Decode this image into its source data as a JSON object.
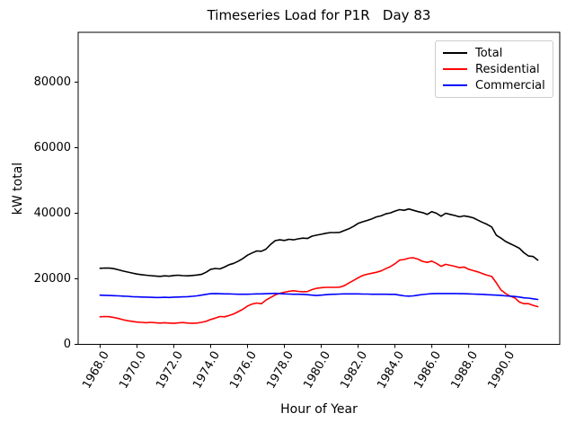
{
  "chart_data": {
    "type": "line",
    "title": "Timeseries Load for P1R   Day 83",
    "xlabel": "Hour of Year",
    "ylabel": "kW total",
    "grid": false,
    "legend_position": "upper right",
    "xlim": [
      1966.81,
      1992.94
    ],
    "ylim": [
      0,
      95200
    ],
    "x_ticks": [
      1968,
      1970,
      1972,
      1974,
      1976,
      1978,
      1980,
      1982,
      1984,
      1986,
      1988,
      1990
    ],
    "x_tick_labels": [
      "1968.0",
      "1970.0",
      "1972.0",
      "1974.0",
      "1976.0",
      "1978.0",
      "1980.0",
      "1982.0",
      "1984.0",
      "1986.0",
      "1988.0",
      "1990.0"
    ],
    "y_ticks": [
      0,
      20000,
      40000,
      60000,
      80000
    ],
    "y_tick_labels": [
      "0",
      "20000",
      "40000",
      "60000",
      "80000"
    ],
    "x_start": 1968.0,
    "x_step": 0.25,
    "series": [
      {
        "name": "Total",
        "color": "#000000",
        "values": [
          23200,
          23300,
          23250,
          23100,
          22750,
          22350,
          22050,
          21750,
          21450,
          21250,
          21100,
          20950,
          20850,
          20750,
          20900,
          20800,
          21000,
          21100,
          20950,
          20900,
          21000,
          21150,
          21350,
          22000,
          22900,
          23150,
          23000,
          23600,
          24300,
          24700,
          25400,
          26200,
          27200,
          27900,
          28500,
          28400,
          29050,
          30500,
          31650,
          31900,
          31700,
          32050,
          31900,
          32200,
          32400,
          32300,
          33000,
          33300,
          33600,
          33900,
          34100,
          34100,
          34150,
          34700,
          35250,
          36000,
          36900,
          37400,
          37800,
          38300,
          38900,
          39200,
          39800,
          40100,
          40650,
          41100,
          40900,
          41300,
          40900,
          40500,
          40200,
          39650,
          40500,
          40000,
          39100,
          40000,
          39650,
          39300,
          38900,
          39200,
          38950,
          38600,
          37900,
          37200,
          36600,
          35800,
          33300,
          32400,
          31400,
          30700,
          30050,
          29300,
          27950,
          26950,
          26800,
          25700
        ]
      },
      {
        "name": "Residential",
        "color": "#ff0000",
        "values": [
          8400,
          8500,
          8450,
          8200,
          7900,
          7500,
          7200,
          7000,
          6800,
          6700,
          6600,
          6700,
          6600,
          6500,
          6600,
          6500,
          6400,
          6550,
          6650,
          6500,
          6400,
          6500,
          6700,
          7000,
          7600,
          8000,
          8500,
          8400,
          8800,
          9300,
          10000,
          10700,
          11700,
          12300,
          12600,
          12400,
          13500,
          14300,
          15100,
          15600,
          15900,
          16200,
          16350,
          16150,
          16050,
          16100,
          16700,
          17100,
          17300,
          17400,
          17400,
          17400,
          17450,
          17900,
          18700,
          19500,
          20300,
          21000,
          21400,
          21700,
          22000,
          22400,
          23100,
          23700,
          24600,
          25700,
          25900,
          26300,
          26400,
          26000,
          25300,
          25000,
          25400,
          24700,
          23800,
          24400,
          24100,
          23800,
          23400,
          23600,
          22900,
          22500,
          22100,
          21600,
          21100,
          20700,
          18800,
          16600,
          15500,
          14700,
          14200,
          12900,
          12400,
          12400,
          11900,
          11500
        ]
      },
      {
        "name": "Commercial",
        "color": "#0000ff",
        "values": [
          15000,
          14950,
          14900,
          14850,
          14800,
          14700,
          14650,
          14550,
          14500,
          14450,
          14400,
          14350,
          14300,
          14300,
          14350,
          14300,
          14400,
          14450,
          14500,
          14550,
          14650,
          14800,
          15000,
          15250,
          15450,
          15500,
          15450,
          15400,
          15400,
          15350,
          15300,
          15300,
          15300,
          15350,
          15400,
          15400,
          15450,
          15500,
          15550,
          15500,
          15400,
          15350,
          15300,
          15300,
          15250,
          15150,
          15000,
          14900,
          15000,
          15150,
          15250,
          15300,
          15350,
          15400,
          15400,
          15400,
          15400,
          15350,
          15350,
          15300,
          15300,
          15300,
          15300,
          15250,
          15250,
          15000,
          14800,
          14700,
          14800,
          15000,
          15200,
          15350,
          15450,
          15500,
          15500,
          15500,
          15500,
          15500,
          15450,
          15450,
          15400,
          15350,
          15300,
          15250,
          15150,
          15100,
          15000,
          14950,
          14800,
          14700,
          14600,
          14450,
          14200,
          14100,
          13900,
          13700
        ]
      }
    ]
  }
}
